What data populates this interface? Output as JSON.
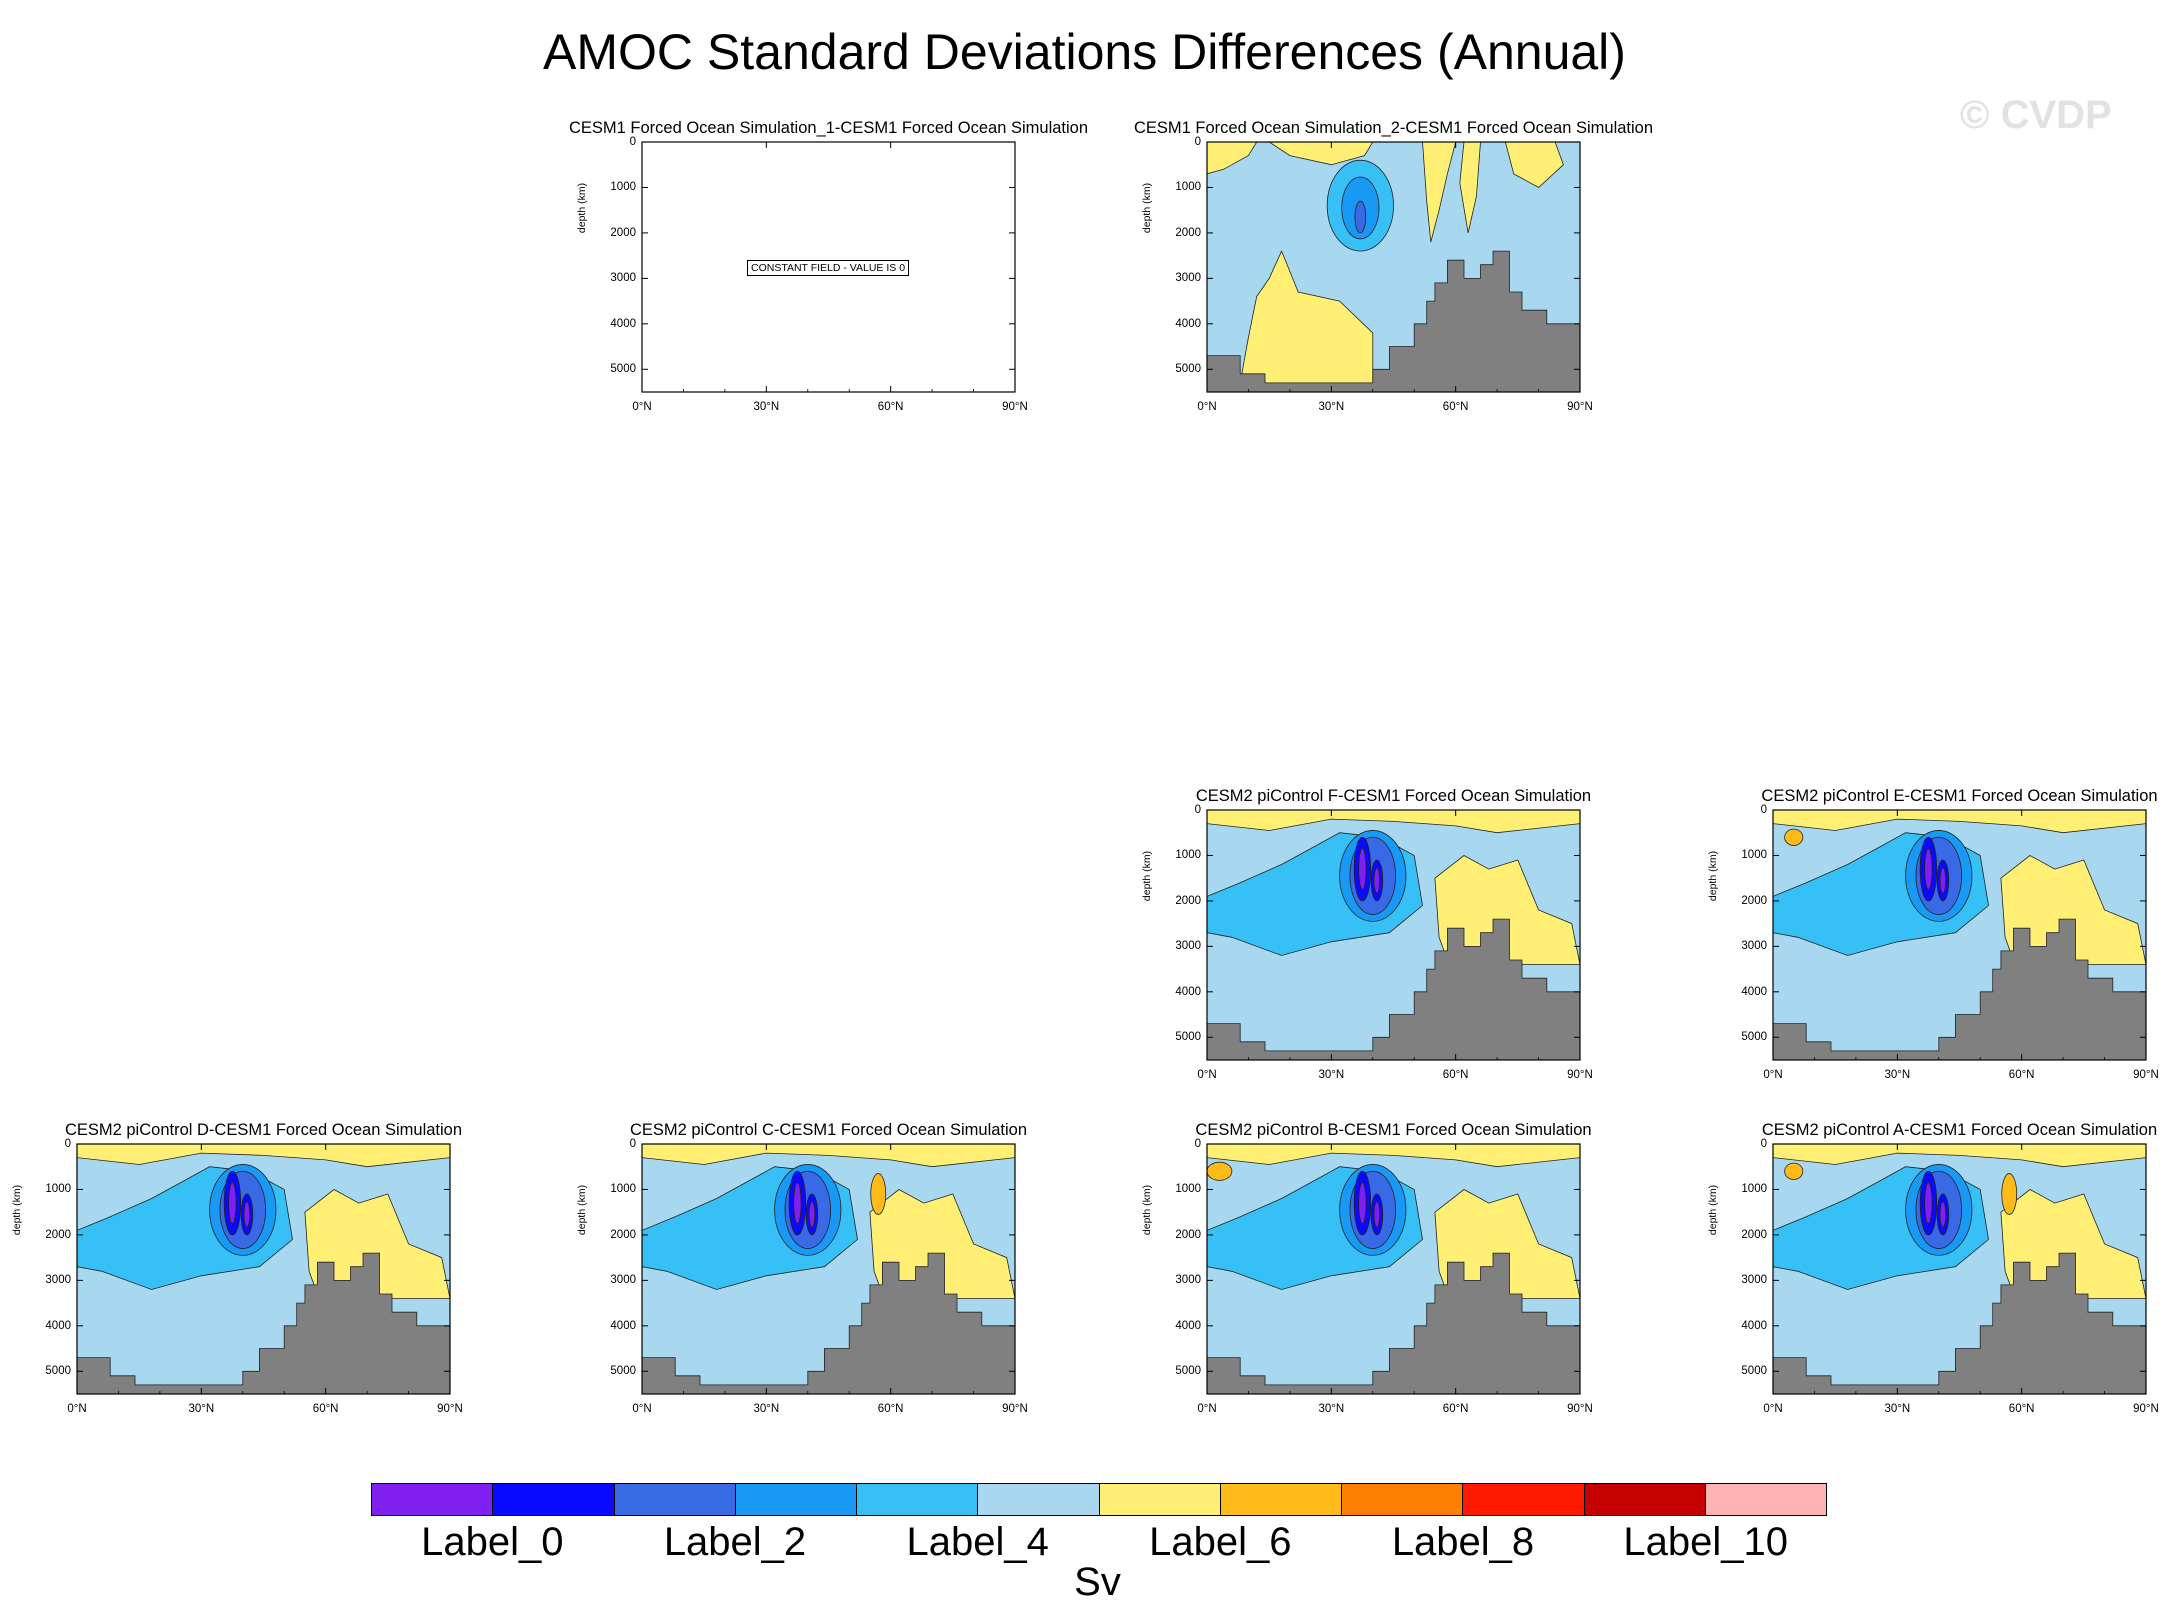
{
  "title": "AMOC Standard Deviations Differences (Annual)",
  "watermark": "© CVDP",
  "colors": {
    "levels": [
      "#7f1ff0",
      "#0a0aff",
      "#386ae6",
      "#1899f5",
      "#36c0f5",
      "#a8d8f0",
      "#fff075",
      "#ffbb1a",
      "#ff7f00",
      "#ff1a00",
      "#c40000",
      "#ffb3b3"
    ],
    "land": "#808080"
  },
  "colorbar": {
    "labels": [
      "Label_0",
      "Label_2",
      "Label_4",
      "Label_6",
      "Label_8",
      "Label_10"
    ],
    "units": "Sv"
  },
  "chart_data": [
    {
      "type": "heatmap",
      "title": "CESM1 Forced Ocean Simulation_1-CESM1 Forced Ocean Simulation",
      "ylabel": "depth (km)",
      "x_ticks": [
        "0°N",
        "30°N",
        "60°N",
        "90°N"
      ],
      "y_ticks": [
        "0",
        "1000",
        "2000",
        "3000",
        "4000",
        "5000"
      ],
      "xlim": [
        0,
        90
      ],
      "ylim": [
        5500,
        0
      ],
      "constant_field": "CONSTANT FIELD - VALUE IS 0"
    },
    {
      "type": "heatmap",
      "title": "CESM1 Forced Ocean Simulation_2-CESM1 Forced Ocean Simulation",
      "ylabel": "depth (km)",
      "x_ticks": [
        "0°N",
        "30°N",
        "60°N",
        "90°N"
      ],
      "y_ticks": [
        "0",
        "1000",
        "2000",
        "3000",
        "4000",
        "5000"
      ],
      "xlim": [
        0,
        90
      ],
      "ylim": [
        5500,
        0
      ]
    },
    {
      "type": "heatmap",
      "title": "CESM2 piControl F-CESM1 Forced Ocean Simulation",
      "ylabel": "depth (km)",
      "x_ticks": [
        "0°N",
        "30°N",
        "60°N",
        "90°N"
      ],
      "y_ticks": [
        "0",
        "1000",
        "2000",
        "3000",
        "4000",
        "5000"
      ],
      "xlim": [
        0,
        90
      ],
      "ylim": [
        5500,
        0
      ]
    },
    {
      "type": "heatmap",
      "title": "CESM2 piControl E-CESM1 Forced Ocean Simulation",
      "ylabel": "depth (km)",
      "x_ticks": [
        "0°N",
        "30°N",
        "60°N",
        "90°N"
      ],
      "y_ticks": [
        "0",
        "1000",
        "2000",
        "3000",
        "4000",
        "5000"
      ],
      "xlim": [
        0,
        90
      ],
      "ylim": [
        5500,
        0
      ]
    },
    {
      "type": "heatmap",
      "title": "CESM2 piControl D-CESM1 Forced Ocean Simulation",
      "ylabel": "depth (km)",
      "x_ticks": [
        "0°N",
        "30°N",
        "60°N",
        "90°N"
      ],
      "y_ticks": [
        "0",
        "1000",
        "2000",
        "3000",
        "4000",
        "5000"
      ],
      "xlim": [
        0,
        90
      ],
      "ylim": [
        5500,
        0
      ]
    },
    {
      "type": "heatmap",
      "title": "CESM2 piControl C-CESM1 Forced Ocean Simulation",
      "ylabel": "depth (km)",
      "x_ticks": [
        "0°N",
        "30°N",
        "60°N",
        "90°N"
      ],
      "y_ticks": [
        "0",
        "1000",
        "2000",
        "3000",
        "4000",
        "5000"
      ],
      "xlim": [
        0,
        90
      ],
      "ylim": [
        5500,
        0
      ]
    },
    {
      "type": "heatmap",
      "title": "CESM2 piControl B-CESM1 Forced Ocean Simulation",
      "ylabel": "depth (km)",
      "x_ticks": [
        "0°N",
        "30°N",
        "60°N",
        "90°N"
      ],
      "y_ticks": [
        "0",
        "1000",
        "2000",
        "3000",
        "4000",
        "5000"
      ],
      "xlim": [
        0,
        90
      ],
      "ylim": [
        5500,
        0
      ]
    },
    {
      "type": "heatmap",
      "title": "CESM2 piControl A-CESM1 Forced Ocean Simulation",
      "ylabel": "depth (km)",
      "x_ticks": [
        "0°N",
        "30°N",
        "60°N",
        "90°N"
      ],
      "y_ticks": [
        "0",
        "1000",
        "2000",
        "3000",
        "4000",
        "5000"
      ],
      "xlim": [
        0,
        90
      ],
      "ylim": [
        5500,
        0
      ]
    }
  ]
}
